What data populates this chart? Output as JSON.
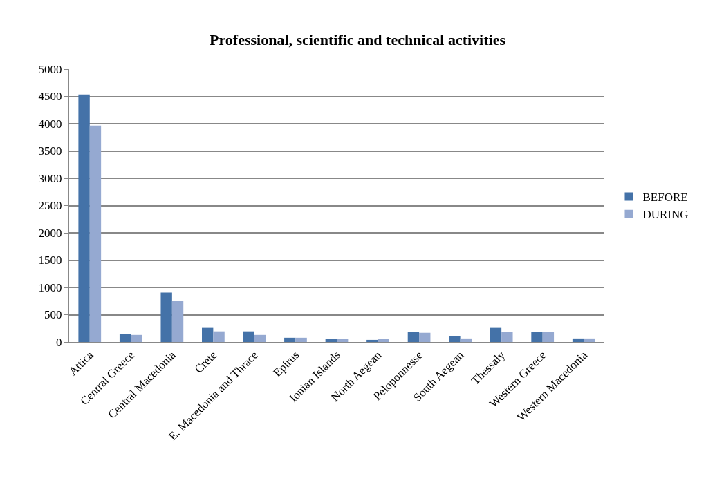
{
  "chart_data": {
    "type": "bar",
    "title": "Professional, scientific and technical activities",
    "categories": [
      "Attica",
      "Central Greece",
      "Central Macedonia",
      "Crete",
      "E. Macedonia and Thrace",
      "Epirus",
      "Ionian Islands",
      "North Aegean",
      "Peloponnesse",
      "South Aegean",
      "Thessaly",
      "Western Greece",
      "Western Macedonia"
    ],
    "series": [
      {
        "name": "BEFORE",
        "color": "#4472a8",
        "values": [
          4535,
          142,
          904,
          258,
          194,
          78,
          52,
          39,
          181,
          103,
          258,
          181,
          65
        ]
      },
      {
        "name": "DURING",
        "color": "#95a9d1",
        "values": [
          3966,
          129,
          749,
          194,
          129,
          78,
          52,
          52,
          168,
          65,
          181,
          181,
          65
        ]
      }
    ],
    "ylim": [
      0,
      5000
    ],
    "yticks": [
      0,
      500,
      1000,
      1500,
      2000,
      2500,
      3000,
      3500,
      4000,
      4500,
      5000
    ],
    "grid": "y",
    "legend": "right"
  }
}
